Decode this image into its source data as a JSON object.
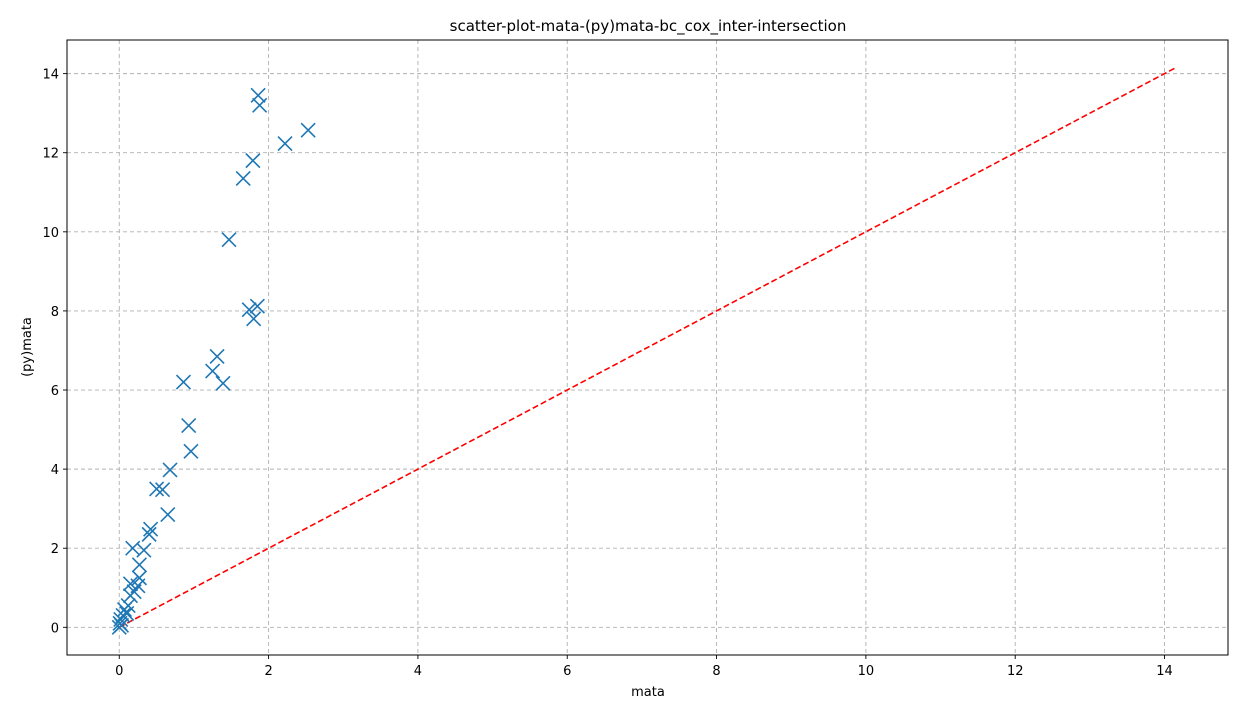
{
  "chart_data": {
    "type": "scatter",
    "title": "scatter-plot-mata-(py)mata-bc_cox_inter-intersection",
    "xlabel": "mata",
    "ylabel": "(py)mata",
    "xlim": [
      -0.7,
      14.85
    ],
    "ylim": [
      -0.7,
      14.85
    ],
    "xticks": [
      0,
      2,
      4,
      6,
      8,
      10,
      12,
      14
    ],
    "yticks": [
      0,
      2,
      4,
      6,
      8,
      10,
      12,
      14
    ],
    "grid": true,
    "marker": "x",
    "color": "#1f77b4",
    "reference_line": {
      "from": [
        0,
        0
      ],
      "to": [
        14.15,
        14.15
      ],
      "color": "#ff0000",
      "style": "dashed"
    },
    "points": [
      {
        "x": 0.0,
        "y": 0.0
      },
      {
        "x": 0.01,
        "y": 0.1
      },
      {
        "x": 0.02,
        "y": 0.2
      },
      {
        "x": 0.03,
        "y": 0.05
      },
      {
        "x": 0.05,
        "y": 0.3
      },
      {
        "x": 0.07,
        "y": 0.45
      },
      {
        "x": 0.1,
        "y": 0.35
      },
      {
        "x": 0.12,
        "y": 0.55
      },
      {
        "x": 0.15,
        "y": 0.8
      },
      {
        "x": 0.15,
        "y": 1.1
      },
      {
        "x": 0.2,
        "y": 0.9
      },
      {
        "x": 0.18,
        "y": 2.0
      },
      {
        "x": 0.25,
        "y": 1.05
      },
      {
        "x": 0.27,
        "y": 1.25
      },
      {
        "x": 0.27,
        "y": 1.58
      },
      {
        "x": 0.33,
        "y": 1.95
      },
      {
        "x": 0.4,
        "y": 2.35
      },
      {
        "x": 0.42,
        "y": 2.48
      },
      {
        "x": 0.5,
        "y": 3.5
      },
      {
        "x": 0.58,
        "y": 3.48
      },
      {
        "x": 0.65,
        "y": 2.85
      },
      {
        "x": 0.68,
        "y": 3.98
      },
      {
        "x": 0.86,
        "y": 6.2
      },
      {
        "x": 0.93,
        "y": 5.1
      },
      {
        "x": 0.96,
        "y": 4.45
      },
      {
        "x": 1.25,
        "y": 6.48
      },
      {
        "x": 1.31,
        "y": 6.85
      },
      {
        "x": 1.39,
        "y": 6.17
      },
      {
        "x": 1.47,
        "y": 9.8
      },
      {
        "x": 1.66,
        "y": 11.35
      },
      {
        "x": 1.74,
        "y": 8.03
      },
      {
        "x": 1.8,
        "y": 7.8
      },
      {
        "x": 1.85,
        "y": 8.12
      },
      {
        "x": 1.79,
        "y": 11.8
      },
      {
        "x": 1.86,
        "y": 13.45
      },
      {
        "x": 1.88,
        "y": 13.2
      },
      {
        "x": 2.22,
        "y": 12.23
      },
      {
        "x": 2.53,
        "y": 12.57
      }
    ]
  }
}
